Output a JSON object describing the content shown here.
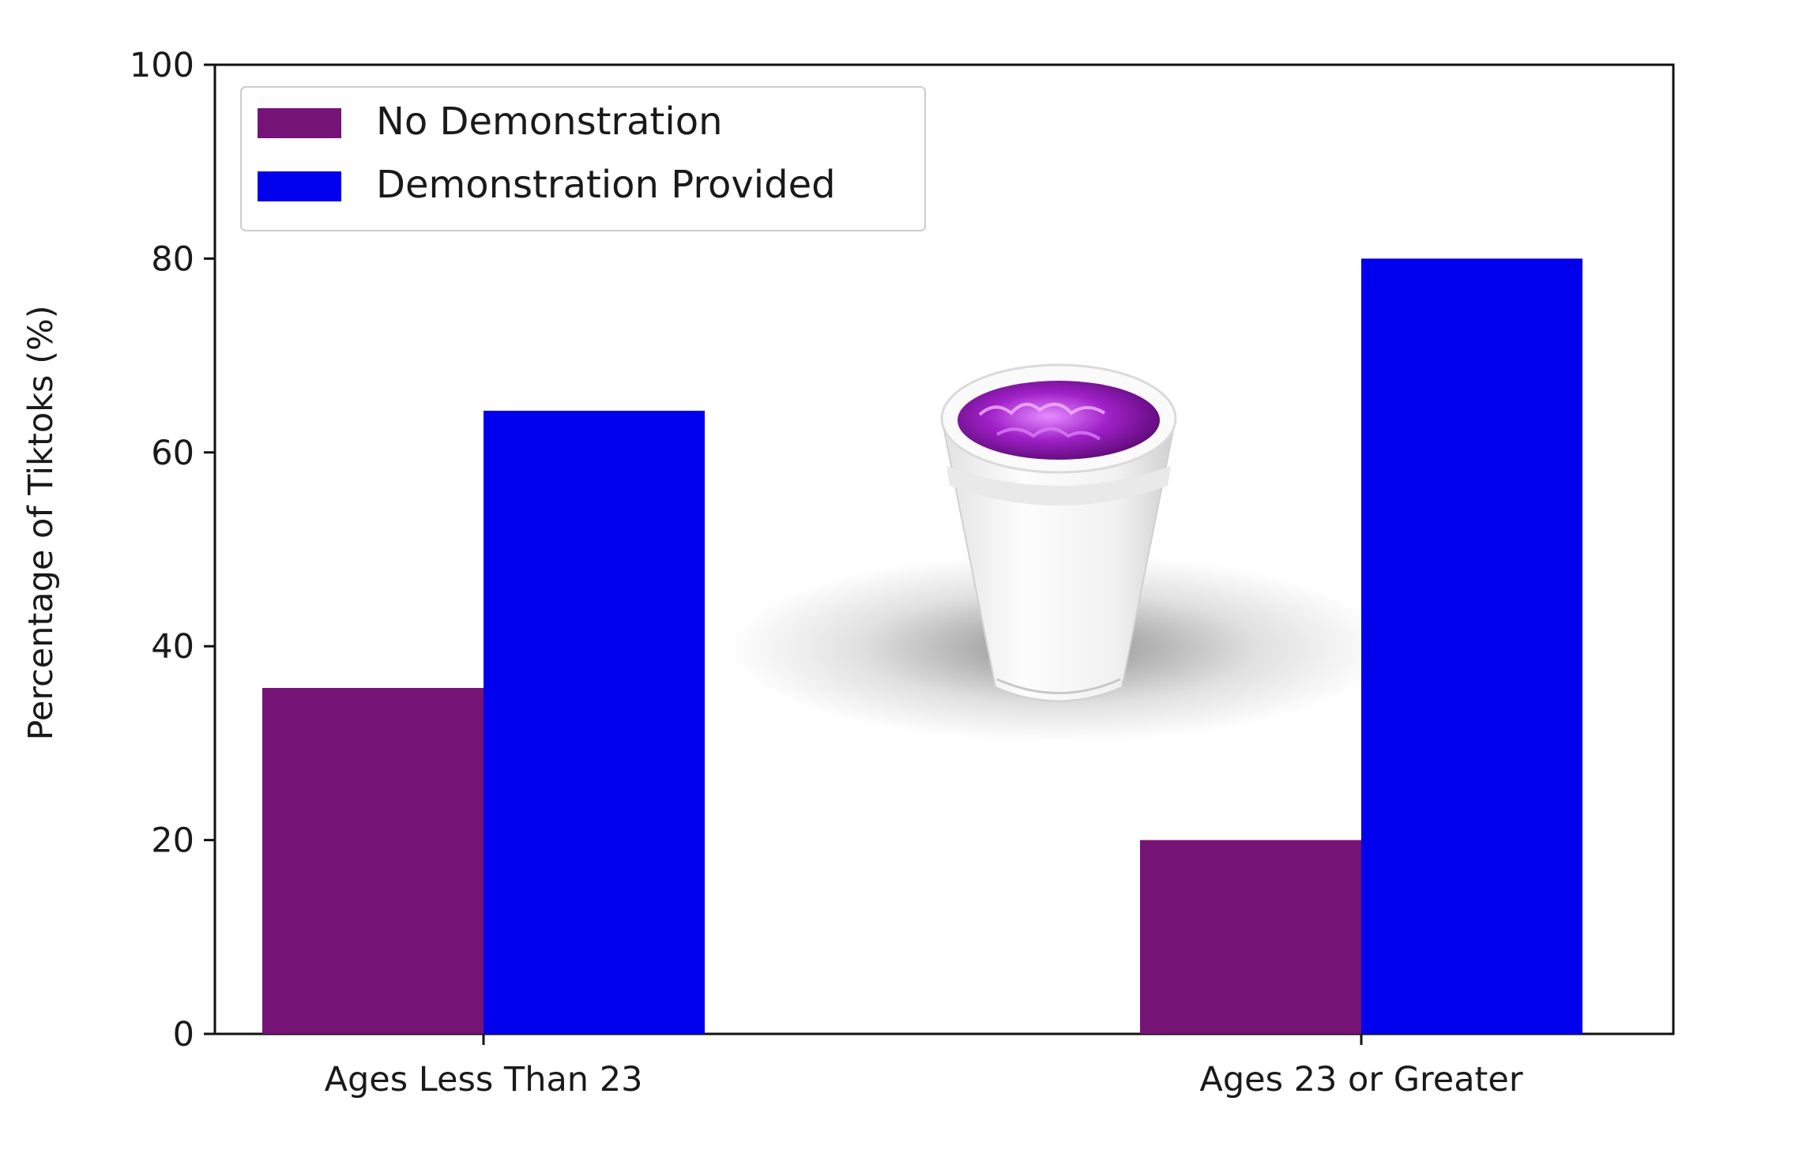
{
  "chart_data": {
    "type": "bar",
    "categories": [
      "Ages Less Than 23",
      "Ages 23 or Greater"
    ],
    "series": [
      {
        "name": "No Demonstration",
        "values": [
          35.7,
          20.0
        ],
        "color": "#761376"
      },
      {
        "name": "Demonstration Provided",
        "values": [
          64.3,
          80.0
        ],
        "color": "#0000ee"
      }
    ],
    "title": "",
    "xlabel": "",
    "ylabel": "Percentage of Tiktoks (%)",
    "ylim": [
      0,
      100
    ],
    "yticks": [
      "0",
      "20",
      "40",
      "60",
      "80",
      "100"
    ],
    "grid": false,
    "legend_position": "top-left"
  },
  "overlay": {
    "icon": "purple-drink-foam-cup-icon",
    "liquid_color": "#a020c8",
    "cup_color": "#f4f4f4"
  }
}
